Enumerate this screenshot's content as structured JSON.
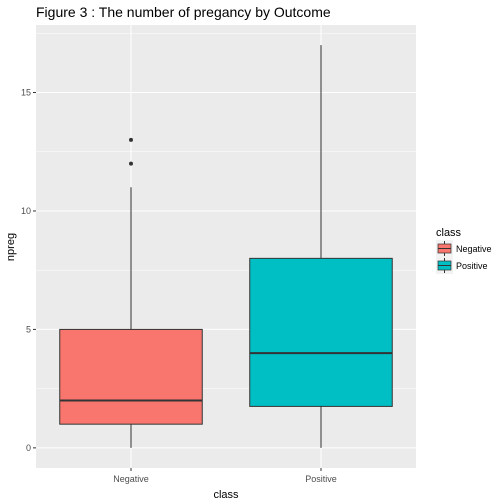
{
  "chart_data": {
    "type": "boxplot",
    "title": "Figure 3 : The number of pregancy by Outcome",
    "xlabel": "class",
    "ylabel": "npreg",
    "ylim": [
      -0.85,
      17.85
    ],
    "yticks": [
      0,
      5,
      10,
      15
    ],
    "grid": true,
    "legend": {
      "title": "class",
      "position": "right"
    },
    "categories": [
      "Negative",
      "Positive"
    ],
    "series": [
      {
        "name": "Negative",
        "color": "#F8766D",
        "min": 0,
        "q1": 1,
        "median": 2,
        "q3": 5,
        "max": 11,
        "outliers": [
          12,
          13
        ]
      },
      {
        "name": "Positive",
        "color": "#00BFC4",
        "min": 0,
        "q1": 1.75,
        "median": 4,
        "q3": 8,
        "max": 17,
        "outliers": []
      }
    ]
  }
}
